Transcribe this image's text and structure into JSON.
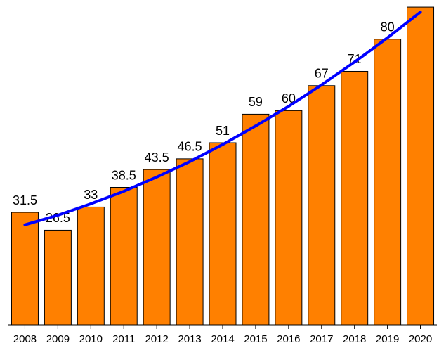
{
  "chart_data": {
    "type": "bar",
    "categories": [
      "2008",
      "2009",
      "2010",
      "2011",
      "2012",
      "2013",
      "2014",
      "2015",
      "2016",
      "2017",
      "2018",
      "2019",
      "2020"
    ],
    "values": [
      31.5,
      26.5,
      33,
      38.5,
      43.5,
      46.5,
      51,
      59,
      60,
      67,
      71,
      80,
      89
    ],
    "value_labels": [
      "31.5",
      "26.5",
      "33",
      "38.5",
      "43.5",
      "46.5",
      "51",
      "59",
      "60",
      "67",
      "71",
      "80",
      null
    ],
    "color": "#ff8000",
    "trend": {
      "color": "#0000ff",
      "values": [
        28,
        30.7,
        33.9,
        37.4,
        41.4,
        45.7,
        50.5,
        55.7,
        61.2,
        67.2,
        73.6,
        80.4,
        87.6
      ]
    },
    "ylim": [
      0,
      90
    ]
  }
}
